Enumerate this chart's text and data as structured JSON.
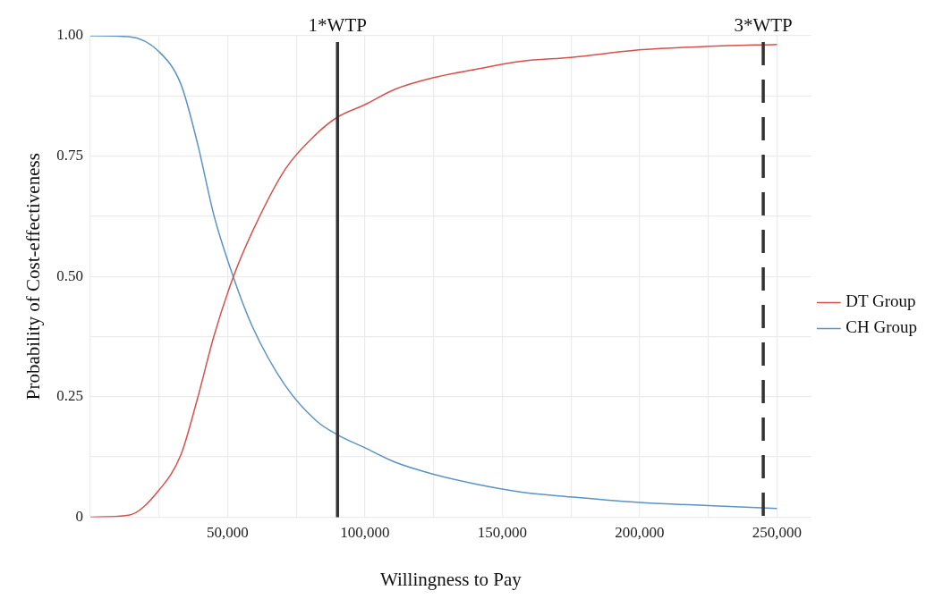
{
  "chart_data": {
    "type": "line",
    "xlabel": "Willingness to Pay",
    "ylabel": "Probability of Cost-effectiveness",
    "x": [
      0,
      14000,
      25000,
      33000,
      39000,
      45000,
      52000,
      59000,
      71000,
      82500,
      90000,
      100000,
      111000,
      125000,
      140000,
      157000,
      175000,
      201000,
      225000,
      250000
    ],
    "series": [
      {
        "name": "DT Group",
        "color": "#d6514c",
        "values": [
          0,
          0.004,
          0.056,
          0.13,
          0.246,
          0.376,
          0.498,
          0.593,
          0.723,
          0.797,
          0.831,
          0.857,
          0.889,
          0.913,
          0.93,
          0.947,
          0.955,
          0.971,
          0.978,
          0.982
        ]
      },
      {
        "name": "CH Group",
        "color": "#5b93c4",
        "values": [
          1,
          0.998,
          0.967,
          0.899,
          0.777,
          0.627,
          0.5,
          0.396,
          0.273,
          0.199,
          0.171,
          0.144,
          0.114,
          0.089,
          0.069,
          0.052,
          0.042,
          0.03,
          0.024,
          0.018
        ]
      }
    ],
    "xlim": [
      0,
      262500
    ],
    "xticks": [
      {
        "value": 0,
        "label": null
      },
      {
        "value": 25000,
        "label": null
      },
      {
        "value": 50000,
        "label": "50,000"
      },
      {
        "value": 75000,
        "label": null
      },
      {
        "value": 100000,
        "label": "100,000"
      },
      {
        "value": 125000,
        "label": null
      },
      {
        "value": 150000,
        "label": "150,000"
      },
      {
        "value": 175000,
        "label": null
      },
      {
        "value": 200000,
        "label": "200,000"
      },
      {
        "value": 225000,
        "label": null
      },
      {
        "value": 250000,
        "label": "250,000"
      }
    ],
    "ylim": [
      0,
      1
    ],
    "yticks": [
      {
        "value": 0,
        "label": "0"
      },
      {
        "value": 0.125,
        "label": null
      },
      {
        "value": 0.25,
        "label": "0.25"
      },
      {
        "value": 0.375,
        "label": null
      },
      {
        "value": 0.5,
        "label": "0.50"
      },
      {
        "value": 0.625,
        "label": null
      },
      {
        "value": 0.75,
        "label": "0.75"
      },
      {
        "value": 0.875,
        "label": null
      },
      {
        "value": 1,
        "label": "1.00"
      }
    ],
    "ref_lines": [
      {
        "axis": "x",
        "value": 90000,
        "label": "1*WTP",
        "color": "#333333",
        "line_style": "solid"
      },
      {
        "axis": "x",
        "value": 245000,
        "label": "3*WTP",
        "color": "#333333",
        "line_style": "dashed"
      }
    ],
    "grid": true,
    "legend": "right",
    "marker": "none",
    "line_style": "solid"
  }
}
